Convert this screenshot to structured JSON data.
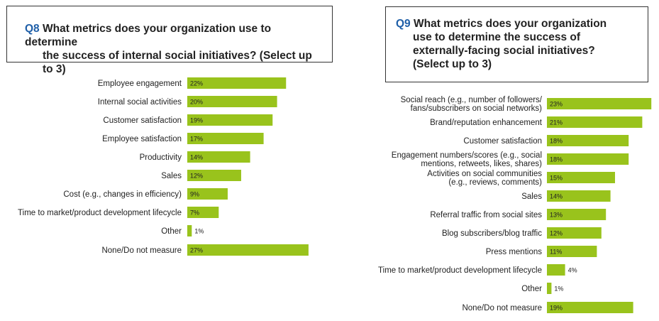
{
  "chart_data": [
    {
      "type": "bar",
      "orientation": "horizontal",
      "question_number": "Q8",
      "title_lines": [
        "What metrics does your organization use to determine",
        "the success of internal social initiatives? (Select up to 3)"
      ],
      "categories": [
        [
          "Employee engagement"
        ],
        [
          "Internal social activities"
        ],
        [
          "Customer satisfaction"
        ],
        [
          "Employee satisfaction"
        ],
        [
          "Productivity"
        ],
        [
          "Sales"
        ],
        [
          "Cost (e.g., changes in efficiency)"
        ],
        [
          "Time to market/product development lifecycle"
        ],
        [
          "Other"
        ],
        [
          "None/Do not measure"
        ]
      ],
      "values": [
        22,
        20,
        19,
        17,
        14,
        12,
        9,
        7,
        1,
        27
      ],
      "value_labels": [
        "22%",
        "20%",
        "19%",
        "17%",
        "14%",
        "12%",
        "9%",
        "7%",
        "1%",
        "27%"
      ],
      "unit": "%"
    },
    {
      "type": "bar",
      "orientation": "horizontal",
      "question_number": "Q9",
      "title_lines": [
        "What metrics does your organization",
        "use to determine the success of",
        "externally-facing social initiatives?",
        "(Select up to 3)"
      ],
      "categories": [
        [
          "Social reach (e.g., number of followers/",
          "fans/subscribers on social networks)"
        ],
        [
          "Brand/reputation enhancement"
        ],
        [
          "Customer satisfaction"
        ],
        [
          "Engagement numbers/scores (e.g., social",
          "mentions, retweets, likes, shares)"
        ],
        [
          "Activities on social communities",
          "(e.g., reviews, comments)"
        ],
        [
          "Sales"
        ],
        [
          "Referral traffic from social sites"
        ],
        [
          "Blog subscribers/blog traffic"
        ],
        [
          "Press mentions"
        ],
        [
          "Time to market/product development lifecycle"
        ],
        [
          "Other"
        ],
        [
          "None/Do not measure"
        ]
      ],
      "values": [
        23,
        21,
        18,
        18,
        15,
        14,
        13,
        12,
        11,
        4,
        1,
        19
      ],
      "value_labels": [
        "23%",
        "21%",
        "18%",
        "18%",
        "15%",
        "14%",
        "13%",
        "12%",
        "11%",
        "4%",
        "1%",
        "19%"
      ],
      "unit": "%"
    }
  ],
  "colors": {
    "bar": "#99c31c",
    "label": "#222222",
    "value": "#222222",
    "question_number": "#1f5fa8"
  }
}
